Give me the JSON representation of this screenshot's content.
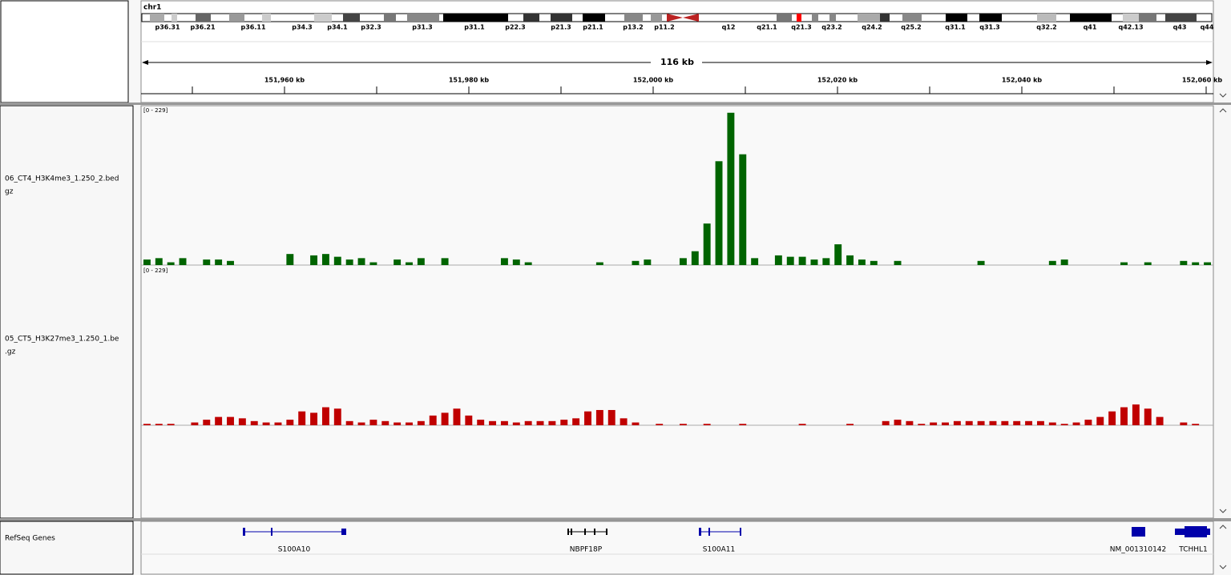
{
  "chromosome": "chr1",
  "cytobands": [
    "p36.31",
    "p36.21",
    "p36.11",
    "p34.3",
    "p34.1",
    "p32.3",
    "p31.3",
    "p31.1",
    "p22.3",
    "p21.3",
    "p21.1",
    "p13.2",
    "p11.2",
    "q12",
    "q21.1",
    "q21.3",
    "q23.2",
    "q24.2",
    "q25.2",
    "q31.1",
    "q31.3",
    "q32.2",
    "q41",
    "q42.13",
    "q43",
    "q44"
  ],
  "ruler": {
    "span": "116 kb",
    "ticks": [
      "151,960 kb",
      "151,980 kb",
      "152,000 kb",
      "152,020 kb",
      "152,040 kb",
      "152,060 kb"
    ]
  },
  "tracks": [
    {
      "name_lines": [
        "06_CT4_H3K4me3_1.250_2.bed",
        "gz"
      ],
      "data_range": {
        "value": [
          0,
          229
        ],
        "label": "[0 - 229]"
      },
      "color": "#006400",
      "values": [
        8,
        10,
        4,
        10,
        0,
        8,
        8,
        6,
        0,
        0,
        0,
        0,
        16,
        0,
        14,
        16,
        12,
        8,
        10,
        4,
        0,
        8,
        4,
        10,
        0,
        10,
        0,
        0,
        0,
        0,
        10,
        8,
        4,
        0,
        0,
        0,
        0,
        0,
        4,
        0,
        0,
        6,
        8,
        0,
        0,
        10,
        20,
        60,
        150,
        220,
        160,
        10,
        0,
        14,
        12,
        12,
        8,
        10,
        30,
        14,
        8,
        6,
        0,
        6,
        0,
        0,
        0,
        0,
        0,
        0,
        6,
        0,
        0,
        0,
        0,
        0,
        6,
        8,
        0,
        0,
        0,
        0,
        4,
        0,
        4,
        0,
        0,
        6,
        4,
        4
      ]
    },
    {
      "name_lines": [
        "05_CT5_H3K27me3_1.250_1.be",
        ".gz"
      ],
      "data_range": {
        "value": [
          0,
          229
        ],
        "label": "[0 - 229]"
      },
      "color": "#c00000",
      "values": [
        2,
        2,
        2,
        0,
        4,
        8,
        12,
        12,
        10,
        6,
        4,
        4,
        8,
        20,
        18,
        26,
        24,
        6,
        4,
        8,
        6,
        4,
        4,
        6,
        14,
        18,
        24,
        14,
        8,
        6,
        6,
        4,
        6,
        6,
        6,
        8,
        10,
        20,
        22,
        22,
        10,
        4,
        0,
        2,
        0,
        2,
        0,
        2,
        0,
        0,
        2,
        0,
        0,
        0,
        0,
        2,
        0,
        0,
        0,
        2,
        0,
        0,
        6,
        8,
        6,
        2,
        4,
        4,
        6,
        6,
        6,
        6,
        6,
        6,
        6,
        6,
        4,
        2,
        4,
        8,
        12,
        20,
        26,
        30,
        24,
        12,
        0,
        4,
        2,
        0
      ]
    }
  ],
  "genes": {
    "track": "RefSeq Genes",
    "labels": [
      "S100A10",
      "NBPF18P",
      "S100A11",
      "NM_001310142",
      "TCHHL1"
    ]
  }
}
